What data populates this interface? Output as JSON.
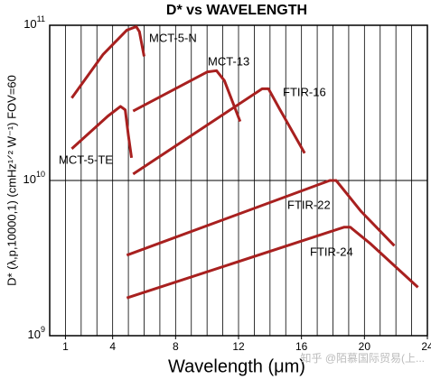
{
  "chart_data": {
    "type": "line",
    "title": "D* vs WAVELENGTH",
    "x_label": "Wavelength (μm)",
    "y_label": "D* (λ,p,10000,1) (cmHz¹ᐟ² W⁻¹) FOV=60",
    "watermark": "知乎 @陌慕国际贸易(上...",
    "xlim": [
      0,
      24
    ],
    "xticks": [
      1,
      4,
      8,
      12,
      16,
      20,
      24
    ],
    "xgrid": [
      1,
      2,
      3,
      4,
      5,
      6,
      7,
      8,
      9,
      10,
      11,
      12,
      13,
      14,
      15,
      16,
      17,
      18,
      19,
      20,
      21,
      22,
      23
    ],
    "ylim": [
      1000000000,
      100000000000
    ],
    "ylog": true,
    "yticks": [
      {
        "value": 100000000000,
        "label": "10",
        "sup": "11"
      },
      {
        "value": 10000000000,
        "label": "10",
        "sup": "10"
      },
      {
        "value": 1000000000,
        "label": "10",
        "sup": "9"
      }
    ],
    "grid": true,
    "series": [
      {
        "name": "MCT-5-N",
        "color": "#a8201f",
        "x": [
          1.4,
          3.4,
          4.9,
          5.5,
          5.7,
          6.0
        ],
        "values": [
          34000000000,
          65000000000,
          93000000000,
          98000000000,
          91000000000,
          63000000000
        ]
      },
      {
        "name": "MCT-5-TE",
        "color": "#a8201f",
        "x": [
          1.4,
          3.7,
          4.5,
          4.8,
          5.0,
          5.2
        ],
        "values": [
          16000000000,
          26000000000,
          30000000000,
          28500000000,
          19500000000,
          14000000000
        ]
      },
      {
        "name": "MCT-13",
        "color": "#a8201f",
        "x": [
          5.3,
          10.0,
          10.6,
          11.1,
          12.1
        ],
        "values": [
          28000000000,
          50000000000,
          51000000000,
          44000000000,
          24000000000
        ]
      },
      {
        "name": "FTIR-16",
        "color": "#a8201f",
        "x": [
          5.3,
          13.5,
          13.9,
          14.6,
          16.2
        ],
        "values": [
          11000000000,
          39000000000,
          39000000000,
          29000000000,
          15000000000
        ]
      },
      {
        "name": "FTIR-22",
        "color": "#a8201f",
        "x": [
          4.9,
          17.8,
          18.2,
          19.8,
          21.9
        ],
        "values": [
          3300000000,
          10000000000,
          10000000000,
          6300000000,
          3800000000
        ]
      },
      {
        "name": "FTIR-24",
        "color": "#a8201f",
        "x": [
          4.9,
          18.7,
          19.1,
          20.4,
          23.4
        ],
        "values": [
          1750000000,
          5000000000,
          5000000000,
          3900000000,
          2050000000
        ]
      }
    ]
  }
}
